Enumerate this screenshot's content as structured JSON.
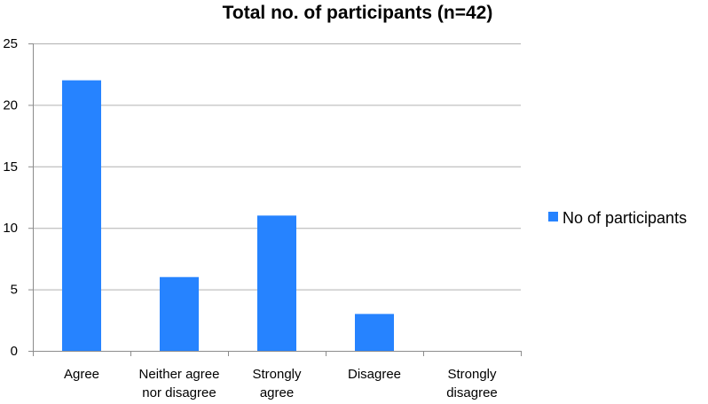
{
  "chart_data": {
    "type": "bar",
    "title": "Total no. of participants (n=42)",
    "categories": [
      [
        "Agree"
      ],
      [
        "Neither agree",
        "nor disagree"
      ],
      [
        "Strongly",
        "agree"
      ],
      [
        "Disagree"
      ],
      [
        "Strongly",
        "disagree"
      ]
    ],
    "series": [
      {
        "name": "No of participants",
        "values": [
          22,
          6,
          11,
          3,
          0
        ],
        "color": "#2683ff"
      }
    ],
    "ylim": [
      0,
      25
    ],
    "yticks": [
      0,
      5,
      10,
      15,
      20,
      25
    ],
    "grid": true,
    "legend_position": "right"
  }
}
